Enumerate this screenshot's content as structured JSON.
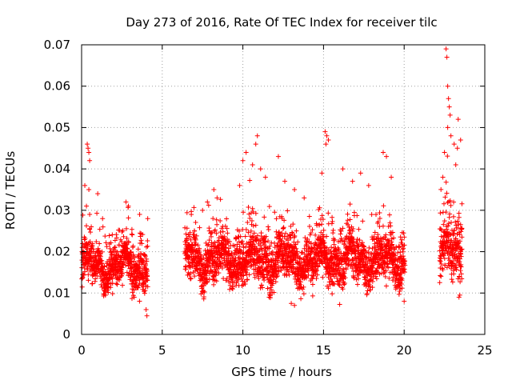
{
  "chart_data": {
    "type": "scatter",
    "title": "Day 273 of 2016, Rate Of TEC Index for receiver tilc",
    "xlabel": "GPS time / hours",
    "ylabel": "ROTI / TECUs",
    "xlim": [
      0,
      25
    ],
    "ylim": [
      0,
      0.07
    ],
    "x_ticks": [
      0,
      5,
      10,
      15,
      20,
      25
    ],
    "x_tick_labels": [
      "0",
      "5",
      "10",
      "15",
      "20",
      "25"
    ],
    "y_ticks": [
      0,
      0.01,
      0.02,
      0.03,
      0.04,
      0.05,
      0.06,
      0.07
    ],
    "y_tick_labels": [
      "0",
      "0.01",
      "0.02",
      "0.03",
      "0.04",
      "0.05",
      "0.06",
      "0.07"
    ],
    "grid": true,
    "marker": "+",
    "marker_color": "#ff0000",
    "grid_color": "#a0a0a0",
    "series": [
      {
        "name": "ROTI",
        "segments": [
          {
            "x_start": 0.0,
            "x_end": 4.1,
            "baseline": 0.0165,
            "spread": 0.0045
          },
          {
            "x_start": 6.4,
            "x_end": 20.05,
            "baseline": 0.018,
            "spread": 0.005
          },
          {
            "x_start": 22.2,
            "x_end": 23.6,
            "baseline": 0.02,
            "spread": 0.006
          }
        ],
        "highlight_points": [
          {
            "x": 0.35,
            "y": 0.046
          },
          {
            "x": 0.4,
            "y": 0.045
          },
          {
            "x": 0.45,
            "y": 0.044
          },
          {
            "x": 0.5,
            "y": 0.042
          },
          {
            "x": 0.2,
            "y": 0.036
          },
          {
            "x": 0.3,
            "y": 0.031
          },
          {
            "x": 0.45,
            "y": 0.035
          },
          {
            "x": 0.5,
            "y": 0.029
          },
          {
            "x": 1.0,
            "y": 0.034
          },
          {
            "x": 0.6,
            "y": 0.026
          },
          {
            "x": 1.3,
            "y": 0.028
          },
          {
            "x": 2.75,
            "y": 0.032
          },
          {
            "x": 2.9,
            "y": 0.031
          },
          {
            "x": 3.6,
            "y": 0.029
          },
          {
            "x": 4.1,
            "y": 0.028
          },
          {
            "x": 4.05,
            "y": 0.0045
          },
          {
            "x": 4.0,
            "y": 0.006
          },
          {
            "x": 7.0,
            "y": 0.025
          },
          {
            "x": 7.5,
            "y": 0.03
          },
          {
            "x": 7.8,
            "y": 0.032
          },
          {
            "x": 8.2,
            "y": 0.035
          },
          {
            "x": 8.4,
            "y": 0.033
          },
          {
            "x": 9.8,
            "y": 0.036
          },
          {
            "x": 10.0,
            "y": 0.042
          },
          {
            "x": 10.2,
            "y": 0.044
          },
          {
            "x": 10.6,
            "y": 0.041
          },
          {
            "x": 10.8,
            "y": 0.046
          },
          {
            "x": 10.9,
            "y": 0.048
          },
          {
            "x": 11.1,
            "y": 0.04
          },
          {
            "x": 11.4,
            "y": 0.038
          },
          {
            "x": 12.2,
            "y": 0.043
          },
          {
            "x": 12.6,
            "y": 0.037
          },
          {
            "x": 13.2,
            "y": 0.035
          },
          {
            "x": 13.0,
            "y": 0.0075
          },
          {
            "x": 13.2,
            "y": 0.007
          },
          {
            "x": 13.8,
            "y": 0.033
          },
          {
            "x": 15.1,
            "y": 0.049
          },
          {
            "x": 15.2,
            "y": 0.048
          },
          {
            "x": 15.15,
            "y": 0.046
          },
          {
            "x": 15.3,
            "y": 0.047
          },
          {
            "x": 14.9,
            "y": 0.039
          },
          {
            "x": 16.2,
            "y": 0.04
          },
          {
            "x": 16.8,
            "y": 0.037
          },
          {
            "x": 17.3,
            "y": 0.039
          },
          {
            "x": 17.8,
            "y": 0.036
          },
          {
            "x": 18.7,
            "y": 0.044
          },
          {
            "x": 18.9,
            "y": 0.043
          },
          {
            "x": 19.2,
            "y": 0.038
          },
          {
            "x": 20.0,
            "y": 0.008
          },
          {
            "x": 22.6,
            "y": 0.069
          },
          {
            "x": 22.65,
            "y": 0.067
          },
          {
            "x": 22.7,
            "y": 0.06
          },
          {
            "x": 22.75,
            "y": 0.057
          },
          {
            "x": 22.8,
            "y": 0.055
          },
          {
            "x": 22.85,
            "y": 0.053
          },
          {
            "x": 22.7,
            "y": 0.05
          },
          {
            "x": 22.9,
            "y": 0.048
          },
          {
            "x": 22.5,
            "y": 0.044
          },
          {
            "x": 22.4,
            "y": 0.038
          },
          {
            "x": 23.1,
            "y": 0.046
          },
          {
            "x": 23.3,
            "y": 0.045
          },
          {
            "x": 23.35,
            "y": 0.052
          },
          {
            "x": 23.5,
            "y": 0.047
          },
          {
            "x": 23.2,
            "y": 0.041
          },
          {
            "x": 23.4,
            "y": 0.009
          },
          {
            "x": 23.45,
            "y": 0.0095
          }
        ]
      }
    ]
  }
}
